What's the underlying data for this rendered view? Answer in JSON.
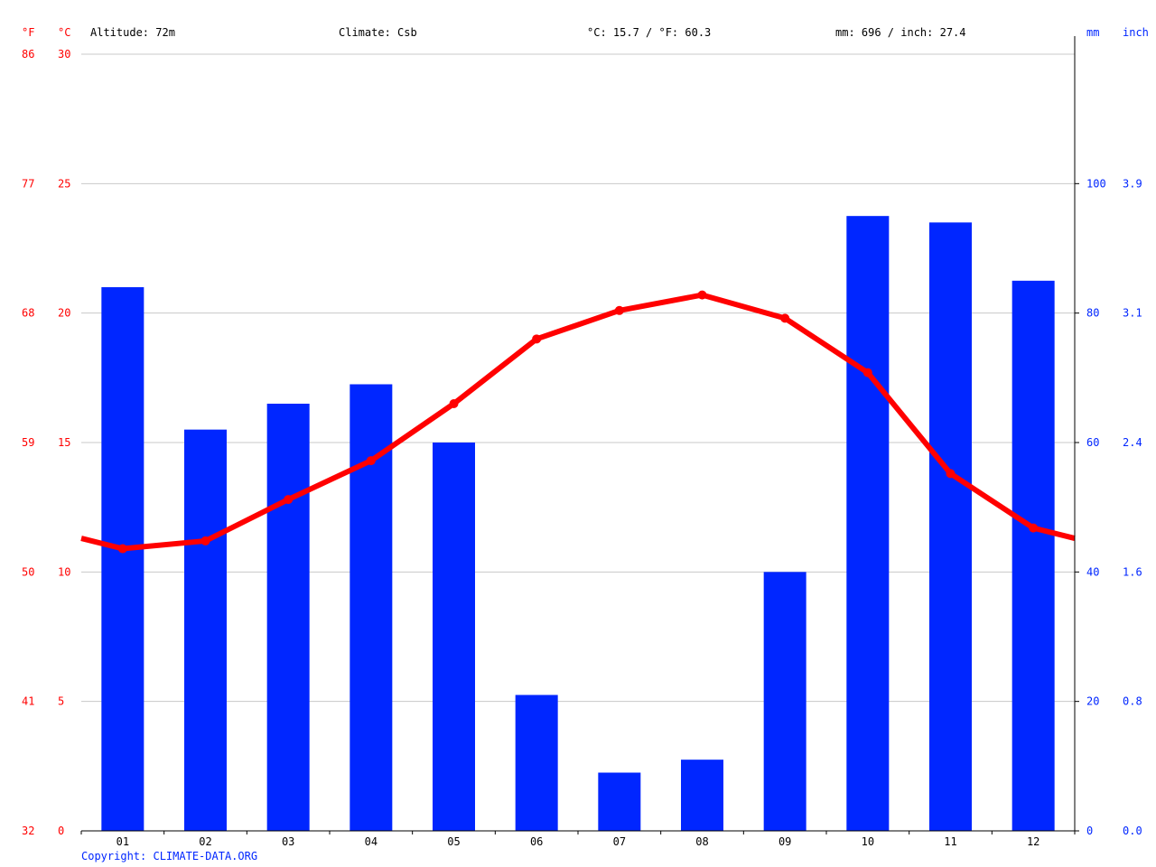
{
  "header": {
    "altitude": "Altitude: 72m",
    "climate": "Climate: Csb",
    "temp_avg": "°C: 15.7 / °F: 60.3",
    "precip_total": "mm: 696 / inch: 27.4"
  },
  "axes": {
    "left_unit_f": "°F",
    "left_unit_c": "°C",
    "right_unit_mm": "mm",
    "right_unit_inch": "inch",
    "celsius_ticks": [
      "0",
      "5",
      "10",
      "15",
      "20",
      "25",
      "30"
    ],
    "fahrenheit_ticks": [
      "32",
      "41",
      "50",
      "59",
      "68",
      "77",
      "86"
    ],
    "mm_ticks": [
      "0",
      "20",
      "40",
      "60",
      "80",
      "100"
    ],
    "inch_ticks": [
      "0.0",
      "0.8",
      "1.6",
      "2.4",
      "3.1",
      "3.9"
    ]
  },
  "copyright": "Copyright: CLIMATE-DATA.ORG",
  "colors": {
    "temperature": "#ff0000",
    "precipitation": "#0026ff",
    "copyright": "#0026ff"
  },
  "chart_data": {
    "type": "bar",
    "categories": [
      "01",
      "02",
      "03",
      "04",
      "05",
      "06",
      "07",
      "08",
      "09",
      "10",
      "11",
      "12"
    ],
    "series": [
      {
        "type": "bar",
        "axis": "right",
        "values": [
          84,
          62,
          66,
          69,
          60,
          21,
          9,
          11,
          40,
          95,
          94,
          85
        ]
      },
      {
        "type": "line",
        "axis": "left",
        "values": [
          10.9,
          11.2,
          12.8,
          14.3,
          16.5,
          19.0,
          20.1,
          20.7,
          19.8,
          17.7,
          13.8,
          11.7
        ]
      }
    ],
    "ylim_left": [
      0,
      30
    ],
    "ylim_right": [
      0,
      120
    ],
    "grid": true
  }
}
